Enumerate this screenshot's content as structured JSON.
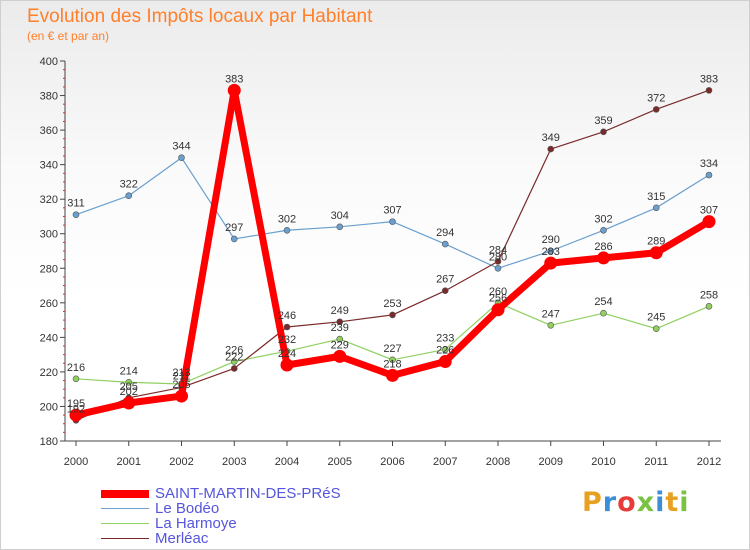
{
  "title": "Evolution des Impôts locaux par Habitant",
  "subtitle": "(en € et par an)",
  "brand": "Proxiti",
  "brand_colors": [
    "#e8a020",
    "#3a8fd8",
    "#e63c3c",
    "#7ac243",
    "#3a8fd8",
    "#e8a020",
    "#7ac243"
  ],
  "chart_data": {
    "type": "line",
    "title": "Evolution des Impôts locaux par Habitant",
    "subtitle": "(en € et par an)",
    "xlabel": "",
    "ylabel": "",
    "ylim": [
      180,
      400
    ],
    "yticks": [
      180,
      200,
      220,
      240,
      260,
      280,
      300,
      320,
      340,
      360,
      380,
      400
    ],
    "grid": false,
    "legend_position": "bottom-left",
    "categories": [
      "2000",
      "2001",
      "2002",
      "2003",
      "2004",
      "2005",
      "2006",
      "2007",
      "2008",
      "2009",
      "2010",
      "2011",
      "2012"
    ],
    "series": [
      {
        "name": "SAINT-MARTIN-DES-PRéS",
        "color": "#ff0000",
        "emphasis": true,
        "values": [
          195,
          202,
          206,
          383,
          224,
          229,
          218,
          226,
          256,
          283,
          286,
          289,
          307
        ],
        "labels": [
          "195",
          "202",
          "206",
          "383",
          "224",
          "229",
          "218",
          "226",
          "256",
          "283",
          "286",
          "289",
          "307"
        ]
      },
      {
        "name": "Le Bodéo",
        "color": "#6a9fcf",
        "emphasis": false,
        "values": [
          311,
          322,
          344,
          297,
          302,
          304,
          307,
          294,
          280,
          290,
          302,
          315,
          334
        ],
        "labels": [
          "311",
          "322",
          "344",
          "297",
          "302",
          "304",
          "307",
          "294",
          "280",
          "290",
          "302",
          "315",
          "334"
        ]
      },
      {
        "name": "La Harmoye",
        "color": "#8fd060",
        "emphasis": false,
        "values": [
          216,
          214,
          213,
          226,
          232,
          239,
          227,
          233,
          260,
          247,
          254,
          245,
          258
        ],
        "labels": [
          "216",
          "214",
          "213",
          "226",
          "232",
          "239",
          "227",
          "233",
          "260",
          "247",
          "254",
          "245",
          "258"
        ]
      },
      {
        "name": "Merléac",
        "color": "#7a2a2a",
        "emphasis": false,
        "values": [
          192,
          205,
          211,
          222,
          246,
          249,
          253,
          267,
          284,
          349,
          359,
          372,
          383
        ],
        "labels": [
          "192",
          "205",
          "211",
          "222",
          "246",
          "249",
          "253",
          "267",
          "284",
          "349",
          "359",
          "372",
          "383"
        ]
      }
    ]
  }
}
